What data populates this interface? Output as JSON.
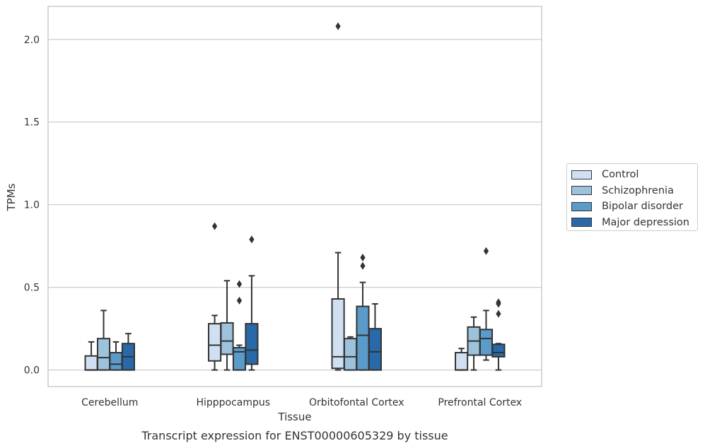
{
  "chart_data": {
    "type": "box",
    "title": "",
    "caption": "Transcript expression for ENST00000605329 by tissue",
    "xlabel": "Tissue",
    "ylabel": "TPMs",
    "ylim": [
      -0.1,
      2.2
    ],
    "yticks": [
      0.0,
      0.5,
      1.0,
      1.5,
      2.0
    ],
    "ytick_labels": [
      "0.0",
      "0.5",
      "1.0",
      "1.5",
      "2.0"
    ],
    "grid": "horizontal",
    "legend_position": "right",
    "categories": [
      "Cerebellum",
      "Hipppocampus",
      "Orbitofontal Cortex",
      "Prefrontal Cortex"
    ],
    "series": [
      {
        "name": "Control",
        "color": "#d0e0f2",
        "boxes": [
          {
            "whislo": 0.0,
            "q1": 0.0,
            "med": 0.0,
            "q3": 0.085,
            "whishi": 0.17,
            "fliers": []
          },
          {
            "whislo": 0.0,
            "q1": 0.055,
            "med": 0.15,
            "q3": 0.28,
            "whishi": 0.33,
            "fliers": [
              0.87
            ]
          },
          {
            "whislo": 0.0,
            "q1": 0.01,
            "med": 0.08,
            "q3": 0.43,
            "whishi": 0.71,
            "fliers": [
              2.08
            ]
          },
          {
            "whislo": 0.0,
            "q1": 0.0,
            "med": 0.0,
            "q3": 0.105,
            "whishi": 0.13,
            "fliers": []
          }
        ]
      },
      {
        "name": "Schizophrenia",
        "color": "#9dc2dc",
        "boxes": [
          {
            "whislo": 0.0,
            "q1": 0.0,
            "med": 0.075,
            "q3": 0.19,
            "whishi": 0.36,
            "fliers": []
          },
          {
            "whislo": 0.0,
            "q1": 0.095,
            "med": 0.175,
            "q3": 0.285,
            "whishi": 0.54,
            "fliers": []
          },
          {
            "whislo": 0.0,
            "q1": 0.0,
            "med": 0.08,
            "q3": 0.19,
            "whishi": 0.2,
            "fliers": []
          },
          {
            "whislo": 0.0,
            "q1": 0.09,
            "med": 0.175,
            "q3": 0.26,
            "whishi": 0.32,
            "fliers": []
          }
        ]
      },
      {
        "name": "Bipolar disorder",
        "color": "#5a9bc9",
        "boxes": [
          {
            "whislo": 0.0,
            "q1": 0.0,
            "med": 0.035,
            "q3": 0.105,
            "whishi": 0.17,
            "fliers": []
          },
          {
            "whislo": 0.0,
            "q1": 0.0,
            "med": 0.11,
            "q3": 0.135,
            "whishi": 0.15,
            "fliers": [
              0.42,
              0.52
            ]
          },
          {
            "whislo": 0.0,
            "q1": 0.0,
            "med": 0.21,
            "q3": 0.385,
            "whishi": 0.53,
            "fliers": [
              0.63,
              0.68
            ]
          },
          {
            "whislo": 0.06,
            "q1": 0.09,
            "med": 0.19,
            "q3": 0.245,
            "whishi": 0.36,
            "fliers": [
              0.72
            ]
          }
        ]
      },
      {
        "name": "Major depression",
        "color": "#2a69a8",
        "boxes": [
          {
            "whislo": 0.0,
            "q1": 0.0,
            "med": 0.08,
            "q3": 0.16,
            "whishi": 0.22,
            "fliers": []
          },
          {
            "whislo": 0.0,
            "q1": 0.035,
            "med": 0.12,
            "q3": 0.28,
            "whishi": 0.57,
            "fliers": [
              0.79
            ]
          },
          {
            "whislo": 0.0,
            "q1": 0.0,
            "med": 0.11,
            "q3": 0.25,
            "whishi": 0.4,
            "fliers": []
          },
          {
            "whislo": 0.0,
            "q1": 0.08,
            "med": 0.105,
            "q3": 0.155,
            "whishi": 0.16,
            "fliers": [
              0.34,
              0.4,
              0.41
            ]
          }
        ]
      }
    ]
  }
}
